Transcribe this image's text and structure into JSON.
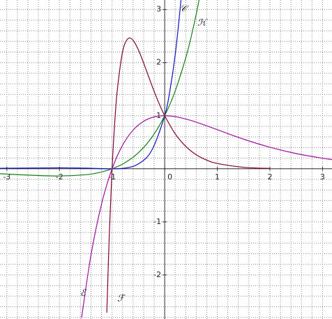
{
  "chart_data": {
    "type": "line",
    "xlim": [
      -3.13,
      3.18
    ],
    "ylim": [
      -2.83,
      3.18
    ],
    "xticks": [
      -3,
      -2,
      -1,
      0,
      1,
      2,
      3
    ],
    "yticks": [
      -2,
      -1,
      1,
      2,
      3
    ],
    "grid": true,
    "series": [
      {
        "name": "𝒞",
        "color": "#1010c0",
        "x": [
          -3.15,
          -2,
          -1.5,
          -1,
          -0.75,
          -0.5,
          -0.25,
          0,
          0.1,
          0.2,
          0.3,
          0.35
        ],
        "values": [
          0.0085,
          0.018,
          0.012,
          0,
          0.014,
          0.092,
          0.341,
          1,
          1.478,
          2.148,
          3.079,
          3.67
        ]
      },
      {
        "name": "ℋ",
        "color": "#108010",
        "x": [
          -3.15,
          -2.5,
          -2,
          -1.5,
          -1.25,
          -1,
          -0.75,
          -0.5,
          -0.25,
          0,
          0.2,
          0.4,
          0.5,
          0.6,
          0.7
        ],
        "values": [
          -0.092,
          -0.123,
          -0.135,
          -0.112,
          -0.072,
          0,
          0.118,
          0.303,
          0.584,
          1,
          1.466,
          2.089,
          2.473,
          2.915,
          3.423
        ]
      },
      {
        "name": "ℱ",
        "color": "#800030",
        "x": [
          -1.1,
          -1.05,
          -1,
          -0.95,
          -0.9,
          -0.8,
          -0.7,
          -0.6,
          -0.5,
          -0.4,
          -0.3,
          -0.2,
          -0.1,
          0,
          0.2,
          0.4,
          0.6,
          0.8,
          1,
          1.5,
          2
        ],
        "values": [
          -2.711,
          -1.167,
          0,
          0.864,
          1.488,
          2.205,
          2.45,
          2.42,
          2.241,
          1.992,
          1.722,
          1.458,
          1.215,
          1,
          0.659,
          0.422,
          0.264,
          0.163,
          0.1,
          0.028,
          0.0074
        ]
      },
      {
        "name": "ℰ",
        "color": "#a010a0",
        "x": [
          -1.58,
          -1.4,
          -1.2,
          -1,
          -0.8,
          -0.6,
          -0.4,
          -0.2,
          0,
          0.25,
          0.5,
          0.75,
          1,
          1.5,
          2,
          2.5,
          3,
          3.2
        ],
        "values": [
          -2.81,
          -1.62,
          -0.664,
          0,
          0.445,
          0.729,
          0.895,
          0.977,
          1,
          0.973,
          0.91,
          0.827,
          0.736,
          0.558,
          0.406,
          0.287,
          0.199,
          0.171
        ]
      }
    ]
  }
}
